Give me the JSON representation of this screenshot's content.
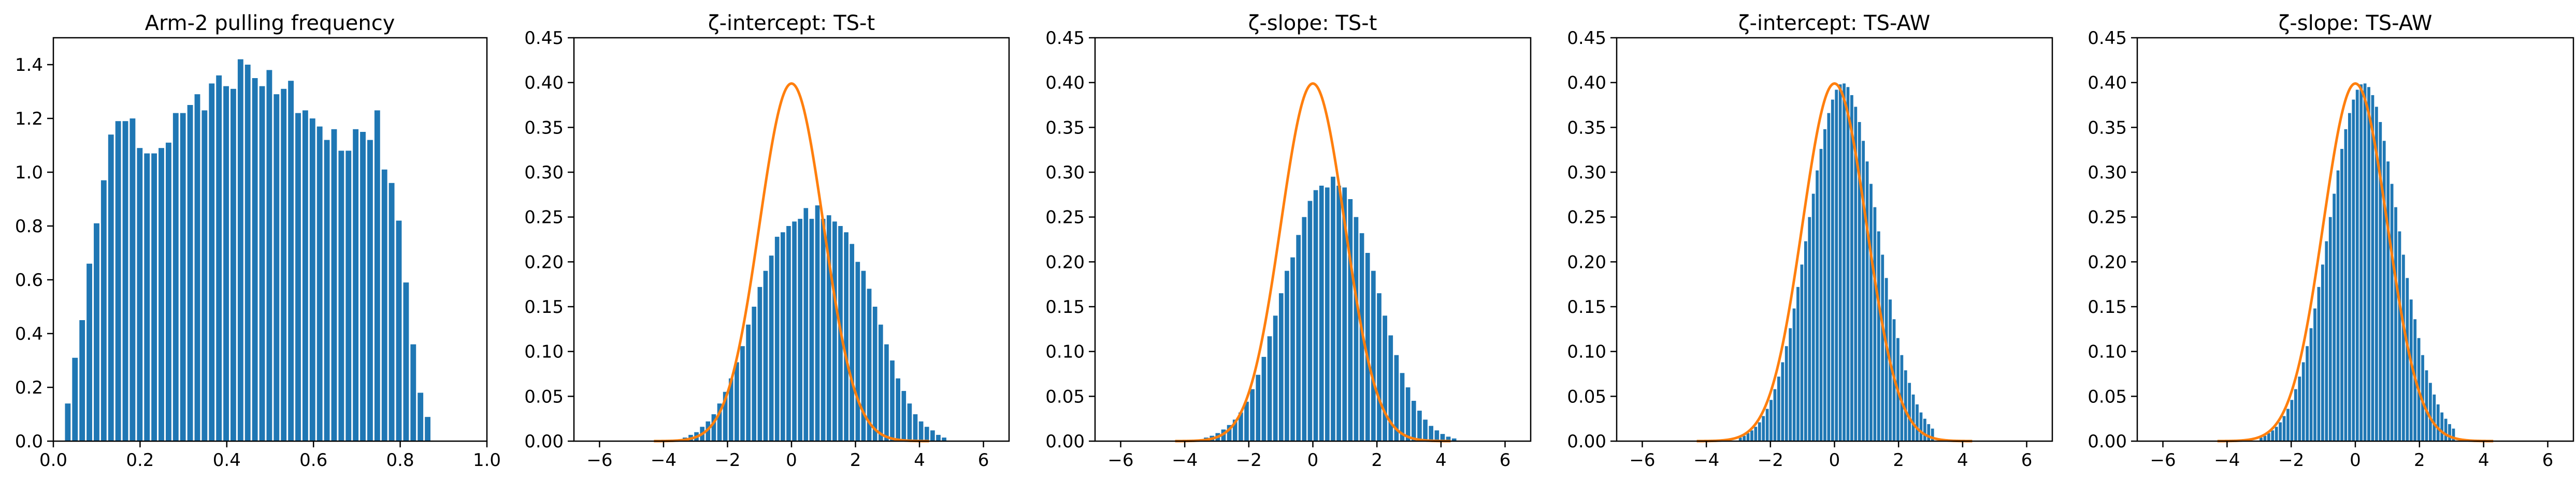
{
  "colors": {
    "bar": "#1f77b4",
    "curve": "#ff7f0e",
    "axis": "#000000",
    "background": "#ffffff"
  },
  "chart_data": [
    {
      "type": "bar",
      "title": "Arm-2 pulling frequency",
      "xlabel": "",
      "ylabel": "",
      "xlim": [
        0,
        1
      ],
      "ylim": [
        0,
        1.5
      ],
      "xticks": [
        "0.0",
        "0.2",
        "0.4",
        "0.6",
        "0.8",
        "1.0"
      ],
      "xtick_values": [
        0,
        0.2,
        0.4,
        0.6,
        0.8,
        1.0
      ],
      "yticks": [
        "0.0",
        "0.2",
        "0.4",
        "0.6",
        "0.8",
        "1.0",
        "1.2",
        "1.4"
      ],
      "ytick_values": [
        0,
        0.2,
        0.4,
        0.6,
        0.8,
        1.0,
        1.2,
        1.4
      ],
      "grid": false,
      "bin_start": 0.025,
      "bin_width": 0.0166,
      "values": [
        0.14,
        0.31,
        0.45,
        0.66,
        0.81,
        0.97,
        1.14,
        1.19,
        1.19,
        1.2,
        1.09,
        1.07,
        1.07,
        1.09,
        1.11,
        1.22,
        1.22,
        1.25,
        1.29,
        1.23,
        1.33,
        1.36,
        1.32,
        1.31,
        1.42,
        1.4,
        1.35,
        1.32,
        1.38,
        1.29,
        1.31,
        1.34,
        1.22,
        1.23,
        1.2,
        1.17,
        1.12,
        1.16,
        1.08,
        1.08,
        1.16,
        1.15,
        1.12,
        1.23,
        1.01,
        0.96,
        0.82,
        0.59,
        0.36,
        0.18,
        0.09
      ]
    },
    {
      "type": "bar",
      "title": "ζ-intercept: TS-t",
      "xlabel": "",
      "ylabel": "",
      "xlim": [
        -6.8,
        6.8
      ],
      "ylim": [
        0,
        0.45
      ],
      "xticks": [
        "−6",
        "−4",
        "−2",
        "0",
        "2",
        "4",
        "6"
      ],
      "xtick_values": [
        -6,
        -4,
        -2,
        0,
        2,
        4,
        6
      ],
      "yticks": [
        "0.00",
        "0.05",
        "0.10",
        "0.15",
        "0.20",
        "0.25",
        "0.30",
        "0.35",
        "0.40",
        "0.45"
      ],
      "ytick_values": [
        0,
        0.05,
        0.1,
        0.15,
        0.2,
        0.25,
        0.3,
        0.35,
        0.4,
        0.45
      ],
      "grid": false,
      "bin_start": -3.6,
      "bin_width": 0.18,
      "values": [
        0.002,
        0.004,
        0.007,
        0.01,
        0.016,
        0.022,
        0.03,
        0.042,
        0.055,
        0.07,
        0.088,
        0.106,
        0.13,
        0.15,
        0.172,
        0.19,
        0.207,
        0.228,
        0.233,
        0.24,
        0.245,
        0.248,
        0.26,
        0.248,
        0.263,
        0.248,
        0.252,
        0.245,
        0.24,
        0.233,
        0.22,
        0.2,
        0.19,
        0.17,
        0.15,
        0.13,
        0.108,
        0.09,
        0.07,
        0.056,
        0.042,
        0.03,
        0.022,
        0.016,
        0.012,
        0.007,
        0.004
      ],
      "curve": {
        "type": "normal-pdf",
        "mean": 0,
        "sd": 1
      }
    },
    {
      "type": "bar",
      "title": "ζ-slope: TS-t",
      "xlabel": "",
      "ylabel": "",
      "xlim": [
        -6.8,
        6.8
      ],
      "ylim": [
        0,
        0.45
      ],
      "xticks": [
        "−6",
        "−4",
        "−2",
        "0",
        "2",
        "4",
        "6"
      ],
      "xtick_values": [
        -6,
        -4,
        -2,
        0,
        2,
        4,
        6
      ],
      "yticks": [
        "0.00",
        "0.05",
        "0.10",
        "0.15",
        "0.20",
        "0.25",
        "0.30",
        "0.35",
        "0.40",
        "0.45"
      ],
      "ytick_values": [
        0,
        0.05,
        0.1,
        0.15,
        0.2,
        0.25,
        0.3,
        0.35,
        0.4,
        0.45
      ],
      "grid": false,
      "bin_start": -3.6,
      "bin_width": 0.18,
      "values": [
        0.002,
        0.004,
        0.006,
        0.009,
        0.013,
        0.018,
        0.024,
        0.032,
        0.044,
        0.058,
        0.074,
        0.094,
        0.117,
        0.14,
        0.165,
        0.19,
        0.205,
        0.23,
        0.25,
        0.268,
        0.28,
        0.285,
        0.283,
        0.295,
        0.285,
        0.283,
        0.27,
        0.25,
        0.232,
        0.21,
        0.19,
        0.165,
        0.14,
        0.118,
        0.096,
        0.076,
        0.06,
        0.045,
        0.034,
        0.024,
        0.017,
        0.012,
        0.008,
        0.005,
        0.003
      ],
      "curve": {
        "type": "normal-pdf",
        "mean": 0,
        "sd": 1
      }
    },
    {
      "type": "bar",
      "title": "ζ-intercept: TS-AW",
      "xlabel": "",
      "ylabel": "",
      "xlim": [
        -6.8,
        6.8
      ],
      "ylim": [
        0,
        0.45
      ],
      "xticks": [
        "−6",
        "−4",
        "−2",
        "0",
        "2",
        "4",
        "6"
      ],
      "xtick_values": [
        -6,
        -4,
        -2,
        0,
        2,
        4,
        6
      ],
      "yticks": [
        "0.00",
        "0.05",
        "0.10",
        "0.15",
        "0.20",
        "0.25",
        "0.30",
        "0.35",
        "0.40",
        "0.45"
      ],
      "ytick_values": [
        0,
        0.05,
        0.1,
        0.15,
        0.2,
        0.25,
        0.3,
        0.35,
        0.4,
        0.45
      ],
      "grid": false,
      "bin_start": -3.0,
      "bin_width": 0.12,
      "values": [
        0.004,
        0.006,
        0.009,
        0.012,
        0.016,
        0.021,
        0.028,
        0.036,
        0.046,
        0.058,
        0.072,
        0.088,
        0.106,
        0.126,
        0.148,
        0.172,
        0.197,
        0.223,
        0.25,
        0.276,
        0.302,
        0.326,
        0.348,
        0.366,
        0.381,
        0.392,
        0.398,
        0.399,
        0.395,
        0.386,
        0.373,
        0.356,
        0.335,
        0.312,
        0.287,
        0.261,
        0.234,
        0.208,
        0.182,
        0.158,
        0.136,
        0.115,
        0.096,
        0.079,
        0.065,
        0.052,
        0.041,
        0.032,
        0.025,
        0.019,
        0.014
      ],
      "curve": {
        "type": "normal-pdf",
        "mean": 0,
        "sd": 1
      }
    },
    {
      "type": "bar",
      "title": "ζ-slope: TS-AW",
      "xlabel": "",
      "ylabel": "",
      "xlim": [
        -6.8,
        6.8
      ],
      "ylim": [
        0,
        0.45
      ],
      "xticks": [
        "−6",
        "−4",
        "−2",
        "0",
        "2",
        "4",
        "6"
      ],
      "xtick_values": [
        -6,
        -4,
        -2,
        0,
        2,
        4,
        6
      ],
      "yticks": [
        "0.00",
        "0.05",
        "0.10",
        "0.15",
        "0.20",
        "0.25",
        "0.30",
        "0.35",
        "0.40",
        "0.45"
      ],
      "ytick_values": [
        0,
        0.05,
        0.1,
        0.15,
        0.2,
        0.25,
        0.3,
        0.35,
        0.4,
        0.45
      ],
      "grid": false,
      "bin_start": -3.0,
      "bin_width": 0.12,
      "values": [
        0.004,
        0.006,
        0.009,
        0.012,
        0.016,
        0.021,
        0.028,
        0.036,
        0.046,
        0.058,
        0.072,
        0.088,
        0.106,
        0.126,
        0.148,
        0.172,
        0.197,
        0.223,
        0.25,
        0.276,
        0.302,
        0.326,
        0.348,
        0.366,
        0.381,
        0.392,
        0.398,
        0.399,
        0.395,
        0.386,
        0.373,
        0.356,
        0.335,
        0.312,
        0.287,
        0.261,
        0.234,
        0.208,
        0.182,
        0.158,
        0.136,
        0.115,
        0.096,
        0.079,
        0.065,
        0.052,
        0.041,
        0.032,
        0.025,
        0.019,
        0.014
      ],
      "curve": {
        "type": "normal-pdf",
        "mean": 0,
        "sd": 1
      }
    }
  ]
}
